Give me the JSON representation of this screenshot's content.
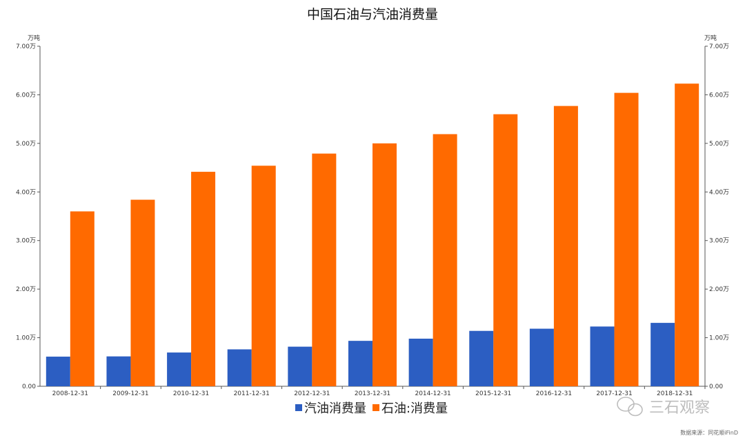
{
  "chart_data": {
    "type": "bar",
    "title": "中国石油与汽油消费量",
    "unit_left": "万吨",
    "unit_right": "万吨",
    "categories": [
      "2008-12-31",
      "2009-12-31",
      "2010-12-31",
      "2011-12-31",
      "2012-12-31",
      "2013-12-31",
      "2014-12-31",
      "2015-12-31",
      "2016-12-31",
      "2017-12-31",
      "2018-12-31"
    ],
    "series": [
      {
        "name": "汽油消费量",
        "color": "#2c5ec2",
        "values": [
          6100,
          6150,
          6950,
          7600,
          8150,
          9350,
          9800,
          11400,
          11850,
          12300,
          13050
        ]
      },
      {
        "name": "石油:消费量",
        "color": "#ff6a00",
        "values": [
          36000,
          38400,
          44150,
          45400,
          47900,
          50000,
          51900,
          56000,
          57700,
          60400,
          62300
        ]
      }
    ],
    "ylim": [
      0,
      70000
    ],
    "y_ticks": [
      "0.00",
      "1.00万",
      "2.00万",
      "3.00万",
      "4.00万",
      "5.00万",
      "6.00万",
      "7.00万"
    ],
    "legend_position": "bottom-center",
    "grid": false,
    "source": "数据来源：同花顺iFinD",
    "watermark": "三石观察"
  }
}
